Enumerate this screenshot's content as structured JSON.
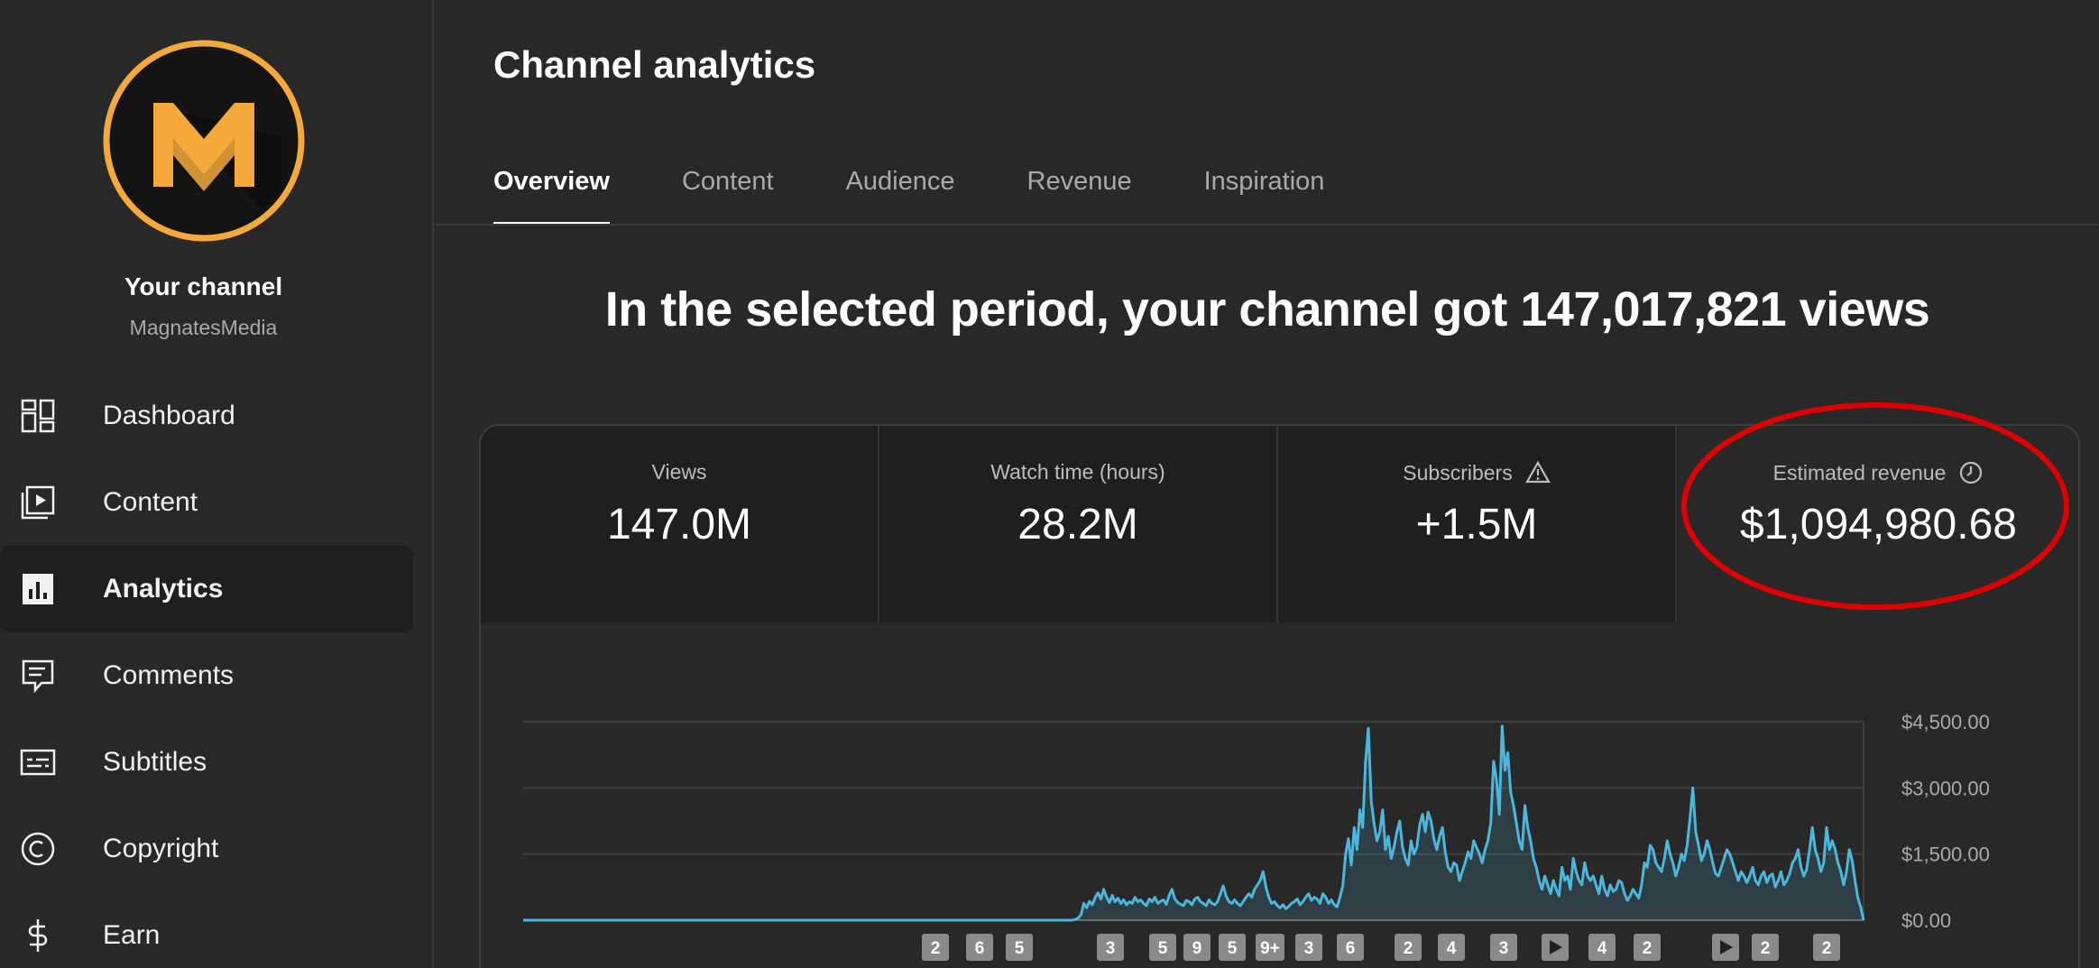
{
  "sidebar": {
    "channel_title": "Your channel",
    "channel_handle": "MagnatesMedia",
    "items": [
      {
        "label": "Dashboard",
        "icon": "dashboard-icon"
      },
      {
        "label": "Content",
        "icon": "content-icon"
      },
      {
        "label": "Analytics",
        "icon": "analytics-icon"
      },
      {
        "label": "Comments",
        "icon": "comments-icon"
      },
      {
        "label": "Subtitles",
        "icon": "subtitles-icon"
      },
      {
        "label": "Copyright",
        "icon": "copyright-icon"
      },
      {
        "label": "Earn",
        "icon": "earn-icon"
      }
    ],
    "active_item": "Analytics"
  },
  "header": {
    "title": "Channel analytics",
    "tabs": [
      "Overview",
      "Content",
      "Audience",
      "Revenue",
      "Inspiration"
    ],
    "active_tab": "Overview"
  },
  "headline": "In the selected period, your channel got 147,017,821 views",
  "metrics": [
    {
      "label": "Views",
      "value": "147.0M"
    },
    {
      "label": "Watch time (hours)",
      "value": "28.2M"
    },
    {
      "label": "Subscribers",
      "value": "+1.5M",
      "icon": "warning-icon"
    },
    {
      "label": "Estimated revenue",
      "value": "$1,094,980.68",
      "icon": "clock-icon"
    }
  ],
  "colors": {
    "accent_line": "#4cb7dc",
    "highlight_circle": "#e00000",
    "logo_orange": "#f5a93a"
  },
  "chart_data": {
    "type": "area",
    "ylabel": "",
    "ytick_labels": [
      "$4,500.00",
      "$3,000.00",
      "$1,500.00",
      "$0.00"
    ],
    "ylim": [
      0,
      4500
    ],
    "grid": true,
    "series": [
      {
        "values": [
          0,
          0,
          0,
          0,
          0,
          0,
          0,
          0,
          0,
          0,
          0,
          0,
          0,
          0,
          0,
          0,
          0,
          0,
          0,
          0,
          0,
          0,
          0,
          0,
          0,
          0,
          0,
          0,
          0,
          0,
          0,
          0,
          0,
          0,
          0,
          0,
          0,
          0,
          0,
          0,
          0,
          0,
          0,
          0,
          0,
          0,
          0,
          0,
          0,
          0,
          0,
          0,
          0,
          0,
          0,
          0,
          0,
          0,
          0,
          0,
          0,
          0,
          0,
          0,
          0,
          0,
          0,
          0,
          0,
          0,
          0,
          0,
          0,
          0,
          0,
          0,
          0,
          0,
          0,
          0,
          0,
          0,
          0,
          0,
          0,
          0,
          0,
          0,
          0,
          0,
          0,
          0,
          0,
          0,
          0,
          0,
          0,
          0,
          0,
          0,
          0,
          0,
          0,
          0,
          0,
          0,
          0,
          0,
          0,
          0,
          0,
          0,
          0,
          0,
          0,
          0,
          0,
          0,
          0,
          0,
          0,
          0,
          0,
          0,
          0,
          0,
          0,
          0,
          0,
          0,
          0,
          0,
          0,
          0,
          0,
          0,
          0,
          0,
          0,
          0,
          0,
          0,
          0,
          0,
          0,
          0,
          0,
          0,
          0,
          0,
          0,
          0,
          0,
          0,
          0,
          0,
          0,
          0,
          0,
          0,
          0,
          0,
          0,
          0,
          0,
          0,
          0,
          0,
          0,
          0,
          0,
          0,
          0,
          0,
          0,
          0,
          0,
          0,
          0,
          0,
          0,
          0,
          0,
          0,
          0,
          0,
          0,
          0,
          0,
          0,
          0,
          0,
          0,
          0,
          20,
          50,
          120,
          380,
          280,
          430,
          350,
          520,
          620,
          480,
          700,
          520,
          400,
          560,
          420,
          500,
          380,
          460,
          350,
          420,
          380,
          520,
          420,
          460,
          380,
          330,
          480,
          420,
          520,
          380,
          430,
          460,
          360,
          560,
          700,
          480,
          400,
          360,
          330,
          450,
          420,
          350,
          480,
          520,
          420,
          380,
          330,
          460,
          380,
          350,
          420,
          600,
          780,
          550,
          420,
          380,
          460,
          380,
          330,
          420,
          520,
          600,
          520,
          700,
          800,
          900,
          1100,
          750,
          520,
          380,
          420,
          330,
          280,
          350,
          260,
          310,
          380,
          420,
          480,
          350,
          420,
          520,
          600,
          450,
          520,
          480,
          380,
          600,
          520,
          380,
          460,
          350,
          300,
          520,
          780,
          1500,
          1850,
          1250,
          2100,
          1600,
          2500,
          2100,
          3600,
          4350,
          2700,
          2200,
          1800,
          2000,
          2500,
          1600,
          1900,
          1400,
          1650,
          2000,
          2250,
          1650,
          1400,
          1250,
          1800,
          1500,
          1650,
          2150,
          2400,
          2000,
          2450,
          2250,
          1850,
          1600,
          1900,
          2100,
          1550,
          1200,
          1100,
          1300,
          1250,
          900,
          1100,
          1300,
          1550,
          1400,
          1800,
          1650,
          1500,
          1300,
          1600,
          1800,
          2200,
          3600,
          3200,
          2400,
          4400,
          3400,
          3800,
          2900,
          2600,
          2200,
          1800,
          1600,
          2600,
          2100,
          1800,
          1400,
          1200,
          900,
          700,
          1000,
          800,
          600,
          900,
          700,
          550,
          1200,
          900,
          1000,
          700,
          1400,
          1100,
          900,
          800,
          1300,
          1000,
          900,
          1000,
          800,
          600,
          1000,
          700,
          550,
          800,
          650,
          700,
          900,
          850,
          600,
          450,
          550,
          700,
          600,
          500,
          800,
          1300,
          1200,
          1700,
          1600,
          1300,
          1200,
          1100,
          1400,
          1800,
          1500,
          1300,
          1000,
          1200,
          1500,
          1350,
          1700,
          2300,
          3000,
          2000,
          1700,
          1350,
          1500,
          1800,
          1600,
          1300,
          1050,
          1000,
          1200,
          1400,
          1600,
          1500,
          1300,
          1100,
          900,
          1100,
          1000,
          850,
          1000,
          1200,
          900,
          800,
          1000,
          1100,
          850,
          1000,
          1050,
          750,
          900,
          1100,
          800,
          900,
          1050,
          1300,
          1400,
          1600,
          1200,
          1000,
          1150,
          1600,
          2100,
          1600,
          1400,
          1100,
          1300,
          2100,
          1600,
          1800,
          1600,
          1300,
          1100,
          800,
          1100,
          1600,
          1350,
          900,
          500,
          300,
          0
        ]
      }
    ],
    "event_markers": [
      "2",
      "6",
      "5",
      "3",
      "5",
      "9",
      "5",
      "9+",
      "3",
      "6",
      "2",
      "4",
      "3",
      "play",
      "4",
      "2",
      "play",
      "2",
      "2"
    ]
  }
}
